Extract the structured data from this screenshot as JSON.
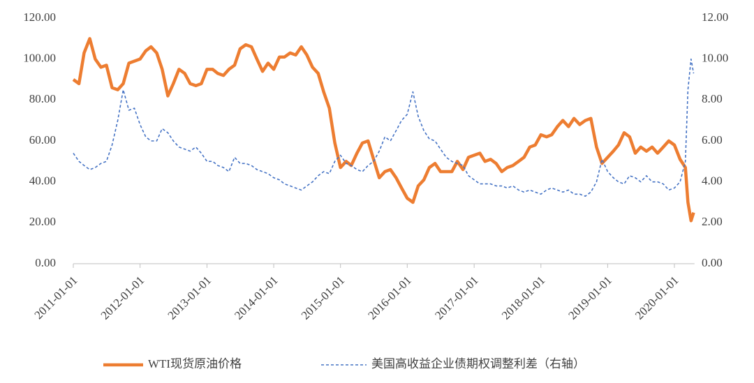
{
  "chart_data": {
    "type": "line",
    "x": [
      "2011-01-01",
      "2011-02-01",
      "2011-03-01",
      "2011-04-01",
      "2011-05-01",
      "2011-06-01",
      "2011-07-01",
      "2011-08-01",
      "2011-09-01",
      "2011-10-01",
      "2011-11-01",
      "2011-12-01",
      "2012-01-01",
      "2012-02-01",
      "2012-03-01",
      "2012-04-01",
      "2012-05-01",
      "2012-06-01",
      "2012-07-01",
      "2012-08-01",
      "2012-09-01",
      "2012-10-01",
      "2012-11-01",
      "2012-12-01",
      "2013-01-01",
      "2013-02-01",
      "2013-03-01",
      "2013-04-01",
      "2013-05-01",
      "2013-06-01",
      "2013-07-01",
      "2013-08-01",
      "2013-09-01",
      "2013-10-01",
      "2013-11-01",
      "2013-12-01",
      "2014-01-01",
      "2014-02-01",
      "2014-03-01",
      "2014-04-01",
      "2014-05-01",
      "2014-06-01",
      "2014-07-01",
      "2014-08-01",
      "2014-09-01",
      "2014-10-01",
      "2014-11-01",
      "2014-12-01",
      "2015-01-01",
      "2015-02-01",
      "2015-03-01",
      "2015-04-01",
      "2015-05-01",
      "2015-06-01",
      "2015-07-01",
      "2015-08-01",
      "2015-09-01",
      "2015-10-01",
      "2015-11-01",
      "2015-12-01",
      "2016-01-01",
      "2016-02-01",
      "2016-03-01",
      "2016-04-01",
      "2016-05-01",
      "2016-06-01",
      "2016-07-01",
      "2016-08-01",
      "2016-09-01",
      "2016-10-01",
      "2016-11-01",
      "2016-12-01",
      "2017-01-01",
      "2017-02-01",
      "2017-03-01",
      "2017-04-01",
      "2017-05-01",
      "2017-06-01",
      "2017-07-01",
      "2017-08-01",
      "2017-09-01",
      "2017-10-01",
      "2017-11-01",
      "2017-12-01",
      "2018-01-01",
      "2018-02-01",
      "2018-03-01",
      "2018-04-01",
      "2018-05-01",
      "2018-06-01",
      "2018-07-01",
      "2018-08-01",
      "2018-09-01",
      "2018-10-01",
      "2018-11-01",
      "2018-12-01",
      "2019-01-01",
      "2019-02-01",
      "2019-03-01",
      "2019-04-01",
      "2019-05-01",
      "2019-06-01",
      "2019-07-01",
      "2019-08-01",
      "2019-09-01",
      "2019-10-01",
      "2019-11-01",
      "2019-12-01",
      "2020-01-01",
      "2020-02-01",
      "2020-03-01",
      "2020-03-15",
      "2020-04-01",
      "2020-04-15"
    ],
    "series": [
      {
        "name": "WTI现货原油价格",
        "color": "#ed7d31",
        "axis": "y",
        "values": [
          90,
          88,
          103,
          110,
          100,
          96,
          97,
          86,
          85,
          88,
          98,
          99,
          100,
          104,
          106,
          103,
          95,
          82,
          88,
          95,
          93,
          88,
          87,
          88,
          95,
          95,
          93,
          92,
          95,
          97,
          105,
          107,
          106,
          100,
          94,
          98,
          95,
          101,
          101,
          103,
          102,
          106,
          102,
          96,
          93,
          84,
          76,
          59,
          47,
          50,
          48,
          54,
          59,
          60,
          51,
          42,
          45,
          46,
          42,
          37,
          32,
          30,
          38,
          41,
          47,
          49,
          45,
          45,
          45,
          50,
          46,
          52,
          53,
          54,
          50,
          51,
          49,
          45,
          47,
          48,
          50,
          52,
          57,
          58,
          63,
          62,
          63,
          67,
          70,
          67,
          71,
          68,
          70,
          71,
          57,
          49,
          52,
          55,
          58,
          64,
          62,
          54,
          57,
          55,
          57,
          54,
          57,
          60,
          58,
          51,
          47,
          30,
          21,
          25
        ]
      },
      {
        "name": "美国高收益企业债期权调整利差（右轴）",
        "color": "#4472c4",
        "axis": "y2",
        "values": [
          5.4,
          5.0,
          4.8,
          4.6,
          4.7,
          4.9,
          5.0,
          5.8,
          7.0,
          8.5,
          7.5,
          7.6,
          6.8,
          6.2,
          6.0,
          6.0,
          6.6,
          6.4,
          6.0,
          5.7,
          5.6,
          5.5,
          5.7,
          5.4,
          5.0,
          5.0,
          4.8,
          4.7,
          4.5,
          5.2,
          4.9,
          4.9,
          4.8,
          4.6,
          4.5,
          4.4,
          4.2,
          4.1,
          3.9,
          3.8,
          3.7,
          3.6,
          3.8,
          4.0,
          4.3,
          4.5,
          4.4,
          5.0,
          5.3,
          4.9,
          4.8,
          4.6,
          4.5,
          4.8,
          5.0,
          5.5,
          6.2,
          6.0,
          6.5,
          7.0,
          7.3,
          8.4,
          7.2,
          6.5,
          6.1,
          6.0,
          5.6,
          5.2,
          5.0,
          4.9,
          4.8,
          4.3,
          4.1,
          3.9,
          3.9,
          3.9,
          3.8,
          3.8,
          3.7,
          3.8,
          3.6,
          3.5,
          3.6,
          3.5,
          3.4,
          3.6,
          3.7,
          3.6,
          3.5,
          3.6,
          3.4,
          3.4,
          3.3,
          3.5,
          4.0,
          5.1,
          4.5,
          4.2,
          4.0,
          3.9,
          4.3,
          4.2,
          4.0,
          4.3,
          4.0,
          4.0,
          3.9,
          3.6,
          3.7,
          4.0,
          5.0,
          8.5,
          10.0,
          9.3
        ]
      }
    ],
    "xlim": [
      "2011-01-01",
      "2020-04-20"
    ],
    "xticks": [
      "2011-01-01",
      "2012-01-01",
      "2013-01-01",
      "2014-01-01",
      "2015-01-01",
      "2016-01-01",
      "2017-01-01",
      "2018-01-01",
      "2019-01-01",
      "2020-01-01"
    ],
    "ylim": [
      0,
      120
    ],
    "yticks": [
      {
        "value": 0,
        "label": "0.00"
      },
      {
        "value": 20,
        "label": "20.00"
      },
      {
        "value": 40,
        "label": "40.00"
      },
      {
        "value": 60,
        "label": "60.00"
      },
      {
        "value": 80,
        "label": "80.00"
      },
      {
        "value": 100,
        "label": "100.00"
      },
      {
        "value": 120,
        "label": "120.00"
      }
    ],
    "y2lim": [
      0,
      12
    ],
    "y2ticks": [
      {
        "value": 0,
        "label": "0.00"
      },
      {
        "value": 2,
        "label": "2.00"
      },
      {
        "value": 4,
        "label": "4.00"
      },
      {
        "value": 6,
        "label": "6.00"
      },
      {
        "value": 8,
        "label": "8.00"
      },
      {
        "value": 10,
        "label": "10.00"
      },
      {
        "value": 12,
        "label": "12.00"
      }
    ],
    "grid": false
  }
}
